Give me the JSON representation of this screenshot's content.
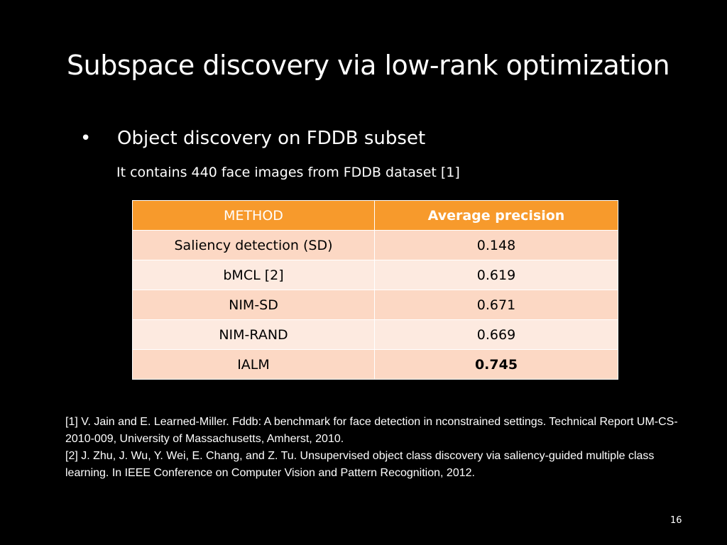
{
  "slide": {
    "title": "Subspace discovery via low-rank optimization",
    "bullet": {
      "glyph": "•",
      "text": "Object discovery on FDDB subset"
    },
    "subtext": "It contains 440 face images from FDDB dataset [1]",
    "table": {
      "header_method": "METHOD",
      "header_ap": "Average precision",
      "rows": [
        {
          "method": "Saliency detection (SD)",
          "ap": "0.148"
        },
        {
          "method": "bMCL [2]",
          "ap": "0.619"
        },
        {
          "method": "NIM-SD",
          "ap": "0.671"
        },
        {
          "method": "NIM-RAND",
          "ap": "0.669"
        },
        {
          "method": "IALM",
          "ap": "0.745"
        }
      ]
    },
    "references": [
      "[1] V. Jain and E. Learned-Miller. Fddb: A benchmark for face detection in nconstrained settings. Technical Report UM-CS-2010-009, University of Massachusetts, Amherst, 2010.",
      "[2] J. Zhu, J. Wu, Y. Wei, E. Chang, and Z. Tu. Unsupervised object class discovery via saliency-guided multiple class learning. In IEEE Conference on Computer Vision and Pattern Recognition, 2012."
    ],
    "page_number": "16"
  },
  "colors": {
    "background": "#000000",
    "header_orange": "#f79a2c",
    "row_dark": "#fcd8c4",
    "row_light": "#fdeae0"
  }
}
